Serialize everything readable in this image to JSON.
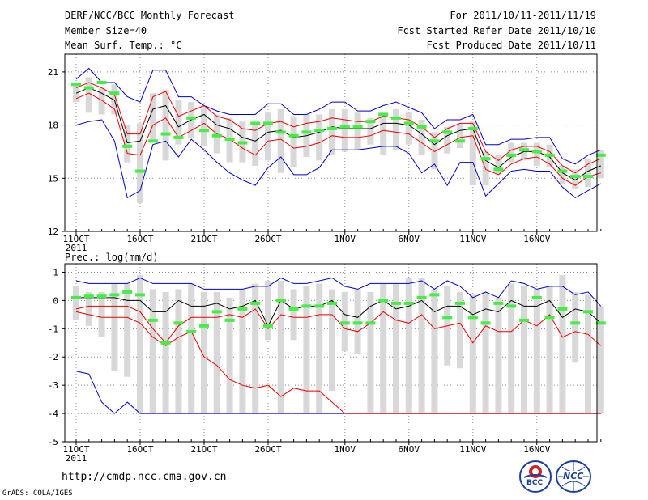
{
  "header": {
    "left": [
      "DERF/NCC/BCC Monthly Forecast",
      "Member Size=40",
      "Mean Surf. Temp.: °C"
    ],
    "right": [
      "For 2011/10/11-2011/11/19",
      "Fcst Started Refer Date 2011/10/10",
      "Fcst Produced Date 2011/10/11"
    ]
  },
  "footer": {
    "url": "http://cmdp.ncc.cma.gov.cn",
    "credit": "GrADS: COLA/IGES"
  },
  "logos": {
    "bcc": "BCC",
    "ncc": "NCC"
  },
  "colors": {
    "envelope": "#0000cc",
    "spread": "#ee0000",
    "mean": "#000000",
    "bar": "#d8d8d8",
    "marker": "#44ee44",
    "grid": "#888888"
  },
  "chart_data": [
    {
      "type": "line",
      "title": "Mean Surf. Temp.: °C",
      "ylim": [
        12,
        22
      ],
      "yticks": [
        12,
        15,
        18,
        21
      ],
      "xtick_labels": [
        {
          "day": 0,
          "label": "11OCT",
          "sub": "2011"
        },
        {
          "day": 5,
          "label": "16OCT"
        },
        {
          "day": 10,
          "label": "21OCT"
        },
        {
          "day": 15,
          "label": "26OCT"
        },
        {
          "day": 21,
          "label": "1NOV"
        },
        {
          "day": 26,
          "label": "6NOV"
        },
        {
          "day": 31,
          "label": "11NOV"
        },
        {
          "day": 36,
          "label": "16NOV"
        }
      ],
      "series": [
        {
          "name": "mean",
          "values": [
            19.8,
            20.1,
            19.8,
            19.4,
            17.0,
            17.1,
            18.9,
            19.1,
            17.9,
            18.3,
            18.6,
            18.0,
            17.8,
            17.3,
            17.1,
            17.6,
            17.7,
            17.3,
            17.4,
            17.6,
            17.9,
            17.8,
            17.8,
            17.8,
            18.1,
            18.1,
            18.0,
            17.5,
            16.9,
            17.4,
            17.7,
            17.8,
            16.0,
            15.6,
            16.2,
            16.5,
            16.5,
            16.2,
            15.3,
            14.9,
            15.4,
            15.7
          ]
        },
        {
          "name": "upper",
          "values": [
            20.1,
            20.4,
            20.1,
            19.7,
            17.5,
            17.5,
            19.6,
            19.9,
            18.5,
            18.8,
            19.1,
            18.5,
            18.3,
            17.8,
            17.7,
            18.1,
            18.2,
            17.9,
            18.1,
            18.2,
            18.4,
            18.3,
            18.2,
            18.2,
            18.5,
            18.4,
            18.3,
            17.9,
            17.3,
            17.8,
            18.1,
            18.1,
            16.5,
            16.0,
            16.6,
            16.8,
            16.8,
            16.5,
            15.7,
            15.3,
            15.8,
            16.1
          ]
        },
        {
          "name": "lower",
          "values": [
            19.5,
            19.8,
            19.4,
            18.9,
            16.4,
            16.3,
            18.0,
            18.4,
            17.3,
            17.7,
            18.1,
            17.5,
            17.2,
            16.7,
            16.3,
            17.1,
            17.2,
            16.7,
            16.8,
            17.0,
            17.4,
            17.3,
            17.3,
            17.4,
            17.7,
            17.6,
            17.5,
            17.0,
            16.5,
            16.9,
            17.3,
            17.4,
            15.5,
            15.2,
            15.8,
            16.1,
            16.2,
            15.8,
            15.0,
            14.6,
            15.1,
            15.3
          ]
        },
        {
          "name": "max",
          "values": [
            20.6,
            21.2,
            20.4,
            20.4,
            19.6,
            19.3,
            21.1,
            21.1,
            19.6,
            19.6,
            19.1,
            18.8,
            18.6,
            18.6,
            18.6,
            19.2,
            19.2,
            18.6,
            18.6,
            18.9,
            19.3,
            19.3,
            18.8,
            18.8,
            19.1,
            19.3,
            19.0,
            18.7,
            17.8,
            18.3,
            18.3,
            18.6,
            16.9,
            16.9,
            17.2,
            17.2,
            17.3,
            17.3,
            16.1,
            15.8,
            16.3,
            16.6
          ]
        },
        {
          "name": "min",
          "values": [
            18.0,
            18.2,
            18.3,
            17.1,
            13.9,
            14.3,
            16.9,
            17.1,
            16.2,
            17.2,
            16.6,
            15.9,
            15.3,
            14.9,
            14.6,
            15.6,
            16.2,
            15.2,
            15.2,
            15.6,
            16.6,
            16.6,
            16.6,
            16.7,
            16.8,
            16.8,
            16.4,
            15.3,
            15.8,
            14.6,
            15.9,
            15.9,
            14.0,
            14.7,
            15.4,
            15.5,
            15.4,
            15.4,
            14.5,
            13.9,
            14.3,
            14.7
          ]
        },
        {
          "name": "bar_top",
          "values": [
            20.3,
            20.7,
            20.1,
            20.3,
            18.0,
            18.1,
            19.8,
            20.0,
            19.4,
            19.3,
            19.0,
            18.6,
            18.4,
            18.2,
            18.0,
            18.7,
            18.9,
            18.5,
            18.6,
            18.6,
            18.9,
            18.9,
            18.7,
            18.4,
            18.7,
            18.9,
            18.7,
            18.3,
            17.6,
            17.9,
            18.1,
            18.2,
            16.5,
            16.3,
            17.0,
            17.0,
            17.0,
            16.9,
            15.7,
            15.5,
            16.1,
            16.6
          ]
        },
        {
          "name": "bar_bottom",
          "values": [
            19.3,
            18.7,
            18.6,
            18.6,
            15.9,
            13.6,
            17.2,
            16.0,
            16.9,
            17.3,
            16.8,
            16.4,
            15.9,
            15.9,
            15.7,
            16.0,
            15.3,
            15.6,
            16.2,
            16.0,
            16.3,
            16.5,
            16.6,
            16.9,
            16.3,
            16.6,
            16.9,
            16.3,
            15.5,
            16.4,
            16.7,
            14.6,
            14.6,
            15.2,
            15.9,
            16.0,
            15.7,
            15.6,
            14.7,
            14.4,
            14.5,
            15.0
          ]
        },
        {
          "name": "marker",
          "values": [
            20.3,
            20.1,
            20.4,
            19.8,
            16.8,
            15.4,
            17.1,
            17.5,
            17.3,
            18.4,
            17.7,
            17.4,
            17.2,
            17.0,
            18.1,
            18.1,
            17.6,
            17.4,
            17.6,
            17.7,
            17.8,
            17.9,
            17.9,
            18.2,
            18.6,
            18.4,
            18.1,
            17.9,
            17.1,
            17.6,
            17.1,
            17.8,
            16.1,
            15.5,
            16.3,
            16.6,
            16.5,
            16.3,
            15.4,
            15.1,
            15.1,
            16.3
          ]
        }
      ]
    },
    {
      "type": "line",
      "title": "Prec.: log(mm/d)",
      "ylim": [
        -5,
        1.3
      ],
      "yticks": [
        -5,
        -4,
        -3,
        -2,
        -1,
        0,
        1
      ],
      "xtick_labels": [
        {
          "day": 0,
          "label": "11OCT",
          "sub": "2011"
        },
        {
          "day": 5,
          "label": "16OCT"
        },
        {
          "day": 10,
          "label": "21OCT"
        },
        {
          "day": 15,
          "label": "26OCT"
        },
        {
          "day": 21,
          "label": "1NOV"
        },
        {
          "day": 26,
          "label": "6NOV"
        },
        {
          "day": 31,
          "label": "11NOV"
        },
        {
          "day": 36,
          "label": "16NOV"
        }
      ],
      "series": [
        {
          "name": "mean",
          "values": [
            0.1,
            0.1,
            0.1,
            0.1,
            0.0,
            0.0,
            -0.4,
            -0.4,
            0.0,
            -0.2,
            -0.2,
            -0.1,
            -0.3,
            -0.2,
            0.0,
            -0.9,
            0.0,
            -0.3,
            -0.2,
            -0.2,
            0.0,
            -0.5,
            -0.6,
            -0.2,
            0.0,
            -0.3,
            -0.2,
            0.0,
            -0.4,
            -0.2,
            -0.2,
            -0.5,
            -0.3,
            -0.4,
            0.0,
            -0.2,
            -0.2,
            0.0,
            -0.6,
            -0.3,
            -0.4,
            -0.8
          ]
        },
        {
          "name": "max",
          "values": [
            0.7,
            0.6,
            0.6,
            0.6,
            0.6,
            0.8,
            0.6,
            0.6,
            0.6,
            0.6,
            0.4,
            0.4,
            0.4,
            0.4,
            0.5,
            0.5,
            0.8,
            0.6,
            0.6,
            0.7,
            0.8,
            0.5,
            0.4,
            0.6,
            0.6,
            0.6,
            0.6,
            0.7,
            0.4,
            0.7,
            0.5,
            0.1,
            0.3,
            0.1,
            0.7,
            0.6,
            0.4,
            0.5,
            0.5,
            0.2,
            0.3,
            -0.2
          ]
        },
        {
          "name": "lower",
          "values": [
            -0.4,
            -0.5,
            -0.6,
            -0.6,
            -0.6,
            -0.8,
            -1.3,
            -1.6,
            -1.3,
            -1.1,
            -2.0,
            -2.3,
            -2.8,
            -3.0,
            -3.1,
            -3.0,
            -3.4,
            -3.1,
            -3.2,
            -3.2,
            -3.6,
            -4.0,
            -4.0,
            -4.0,
            -4.0,
            -4.0,
            -4.0,
            -4.0,
            -4.0,
            -4.0,
            -4.0,
            -4.0,
            -4.0,
            -4.0,
            -4.0,
            -4.0,
            -4.0,
            -4.0,
            -4.0,
            -4.0,
            -4.0,
            -4.0
          ]
        },
        {
          "name": "upper",
          "values": [
            -0.3,
            -0.2,
            -0.2,
            -0.2,
            -0.2,
            -0.4,
            -1.0,
            -1.5,
            -0.9,
            -0.6,
            -0.6,
            -0.6,
            -0.5,
            -0.6,
            -0.3,
            -1.0,
            -0.5,
            -0.6,
            -0.6,
            -0.5,
            -0.5,
            -1.0,
            -1.1,
            -0.8,
            -0.4,
            -0.7,
            -0.8,
            -0.5,
            -1.0,
            -0.9,
            -0.8,
            -1.5,
            -0.9,
            -1.1,
            -1.1,
            -0.7,
            -0.9,
            -0.5,
            -1.3,
            -1.1,
            -1.2,
            -1.6
          ]
        },
        {
          "name": "min",
          "values": [
            -2.5,
            -2.6,
            -3.6,
            -4.0,
            -3.6,
            -4.0,
            -4.0,
            -4.0,
            -4.0,
            -4.0,
            -4.0,
            -4.0,
            -4.0,
            -4.0,
            -4.0,
            -4.0,
            -4.0,
            -4.0,
            -4.0,
            -4.0,
            -4.0,
            -4.0,
            -4.0,
            -4.0,
            -4.0,
            -4.0,
            -4.0,
            -4.0,
            -4.0,
            -4.0,
            -4.0,
            -4.0,
            -4.0,
            -4.0,
            -4.0,
            -4.0,
            -4.0,
            -4.0,
            -4.0,
            -4.0,
            -4.0,
            -4.0
          ]
        },
        {
          "name": "bar_top",
          "values": [
            0.5,
            0.3,
            0.3,
            0.6,
            0.6,
            0.9,
            0.4,
            0.3,
            0.4,
            0.6,
            0.3,
            0.3,
            0.1,
            0.4,
            0.6,
            0.7,
            0.7,
            0.4,
            0.5,
            0.6,
            0.4,
            0.3,
            0.4,
            0.3,
            0.6,
            0.6,
            0.8,
            0.8,
            0.4,
            0.5,
            0.3,
            0.2,
            0.3,
            0.1,
            0.6,
            0.5,
            0.4,
            0.5,
            0.9,
            0.3,
            0.2,
            -0.2
          ]
        },
        {
          "name": "bar_bottom",
          "values": [
            -0.7,
            -0.9,
            -1.3,
            -2.5,
            -2.7,
            -4.0,
            -4.0,
            -4.0,
            -4.0,
            -4.0,
            -4.0,
            -4.0,
            -4.0,
            -4.0,
            -4.0,
            -1.4,
            -4.0,
            -1.4,
            -4.0,
            -4.0,
            -3.2,
            -1.8,
            -1.9,
            -4.0,
            -4.0,
            -4.0,
            -4.0,
            -4.0,
            -4.0,
            -2.3,
            -2.4,
            -4.0,
            -4.0,
            -4.0,
            -4.0,
            -4.0,
            -4.0,
            -4.0,
            -4.0,
            -2.2,
            -4.0,
            -4.0
          ]
        },
        {
          "name": "marker",
          "values": [
            0.1,
            0.15,
            0.15,
            0.2,
            0.3,
            0.2,
            -0.7,
            -1.5,
            -0.8,
            -1.1,
            -0.9,
            -0.4,
            -0.7,
            -0.3,
            -0.1,
            -0.9,
            0.0,
            -0.3,
            -0.2,
            -0.2,
            -0.1,
            -0.8,
            -0.8,
            -0.8,
            0.0,
            -0.1,
            -0.1,
            0.1,
            0.2,
            -0.6,
            -0.1,
            -0.6,
            -0.8,
            -0.1,
            -0.2,
            -0.7,
            0.1,
            -0.6,
            -0.3,
            -0.8,
            -0.4,
            -0.8
          ]
        }
      ]
    }
  ]
}
